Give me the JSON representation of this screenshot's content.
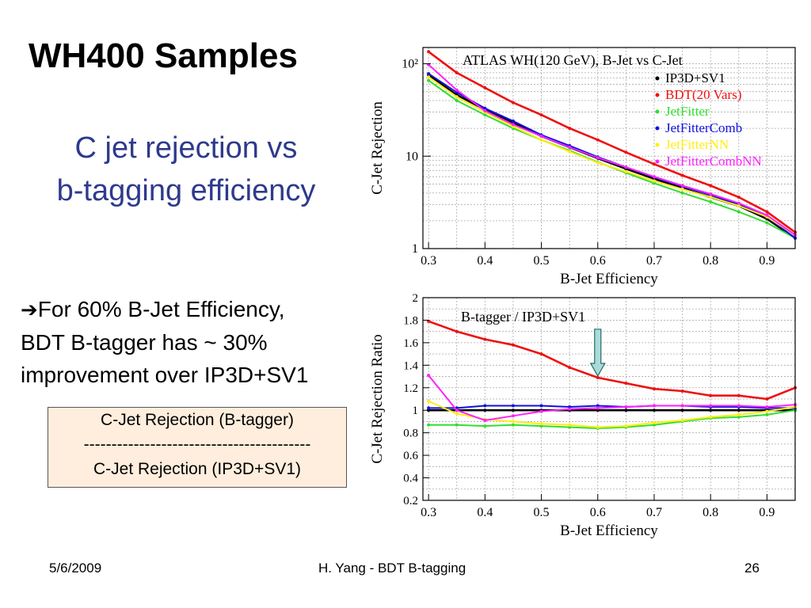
{
  "slide": {
    "title": "WH400 Samples",
    "subtitle_line1": "C jet rejection vs",
    "subtitle_line2": "b-tagging efficiency",
    "bullet_arrow": "➔",
    "bullet_line1": "For 60% B-Jet Efficiency,",
    "bullet_line2": "BDT B-tagger has ~ 30%",
    "bullet_line3": "improvement over IP3D+SV1",
    "box_top": "C-Jet Rejection (B-tagger)",
    "box_sep": "-----------------------------------------",
    "box_bottom": "C-Jet Rejection (IP3D+SV1)"
  },
  "footer": {
    "date": "5/6/2009",
    "center": "H. Yang - BDT B-tagging",
    "page": "26"
  },
  "colors": {
    "IP3D+SV1": "#000000",
    "BDT(20 Vars)": "#ee1111",
    "JetFitter": "#33dd33",
    "JetFitterComb": "#1111dd",
    "JetFitterNN": "#ffee11",
    "JetFitterCombNN": "#ff22ff",
    "ratio_arrow": "#a8dcd8"
  },
  "chart_data": [
    {
      "type": "line",
      "title": "ATLAS WH(120 GeV), B-Jet vs C-Jet",
      "xlabel": "B-Jet Efficiency",
      "ylabel": "C-Jet Rejection",
      "xlim": [
        0.29,
        0.95
      ],
      "ylim": [
        1,
        150
      ],
      "yscale": "log",
      "xticks": [
        "0.3",
        "0.4",
        "0.5",
        "0.6",
        "0.7",
        "0.8",
        "0.9"
      ],
      "yticks": [
        "1",
        "10",
        "10²"
      ],
      "grid": true,
      "legend_position": "top-right",
      "x": [
        0.3,
        0.35,
        0.4,
        0.45,
        0.5,
        0.55,
        0.6,
        0.65,
        0.7,
        0.75,
        0.8,
        0.85,
        0.9,
        0.95
      ],
      "series": [
        {
          "name": "IP3D+SV1",
          "values": [
            75,
            46,
            32,
            23,
            16.5,
            12.5,
            9.5,
            7.3,
            5.7,
            4.5,
            3.6,
            2.9,
            2.1,
            1.3
          ]
        },
        {
          "name": "BDT(20 Vars)",
          "values": [
            135,
            80,
            55,
            38,
            28,
            20,
            15,
            11,
            8.2,
            6.2,
            4.8,
            3.6,
            2.5,
            1.5
          ]
        },
        {
          "name": "JetFitter",
          "values": [
            66,
            40,
            28,
            20,
            15,
            11.5,
            8.6,
            6.6,
            5.1,
            4.0,
            3.2,
            2.5,
            1.9,
            1.3
          ]
        },
        {
          "name": "JetFitterComb",
          "values": [
            78,
            49,
            33,
            24,
            17,
            13,
            9.8,
            7.6,
            5.9,
            4.7,
            3.8,
            3.0,
            2.2,
            1.3
          ]
        },
        {
          "name": "JetFitterNN",
          "values": [
            72,
            44,
            30,
            21,
            15,
            11.2,
            8.5,
            6.8,
            5.4,
            4.4,
            3.6,
            2.9,
            2.2,
            1.4
          ]
        },
        {
          "name": "JetFitterCombNN",
          "values": [
            98,
            52,
            31,
            22,
            16.5,
            12.5,
            9.6,
            7.6,
            6.0,
            4.8,
            3.9,
            3.1,
            2.3,
            1.4
          ]
        }
      ]
    },
    {
      "type": "line",
      "title": "B-tagger / IP3D+SV1",
      "xlabel": "B-Jet Efficiency",
      "ylabel": "C-Jet Rejection Ratio",
      "xlim": [
        0.29,
        0.95
      ],
      "ylim": [
        0.2,
        2.0
      ],
      "xticks": [
        "0.3",
        "0.4",
        "0.5",
        "0.6",
        "0.7",
        "0.8",
        "0.9"
      ],
      "yticks": [
        "0.2",
        "0.4",
        "0.6",
        "0.8",
        "1",
        "1.2",
        "1.4",
        "1.6",
        "1.8",
        "2"
      ],
      "grid": true,
      "annotation_arrow_x": 0.6,
      "x": [
        0.3,
        0.35,
        0.4,
        0.45,
        0.5,
        0.55,
        0.6,
        0.65,
        0.7,
        0.75,
        0.8,
        0.85,
        0.9,
        0.95
      ],
      "series": [
        {
          "name": "IP3D+SV1",
          "values": [
            1.0,
            1.0,
            1.0,
            1.0,
            1.0,
            1.0,
            1.0,
            1.0,
            1.0,
            1.0,
            1.0,
            1.0,
            1.0,
            1.0
          ]
        },
        {
          "name": "BDT(20 Vars)",
          "values": [
            1.79,
            1.7,
            1.63,
            1.58,
            1.5,
            1.38,
            1.29,
            1.24,
            1.19,
            1.17,
            1.13,
            1.13,
            1.1,
            1.2
          ]
        },
        {
          "name": "JetFitter",
          "values": [
            0.87,
            0.87,
            0.86,
            0.87,
            0.86,
            0.85,
            0.84,
            0.85,
            0.87,
            0.9,
            0.93,
            0.94,
            0.96,
            1.0
          ]
        },
        {
          "name": "JetFitterComb",
          "values": [
            1.02,
            1.02,
            1.04,
            1.04,
            1.04,
            1.03,
            1.04,
            1.03,
            1.04,
            1.04,
            1.03,
            1.03,
            1.02,
            1.02
          ]
        },
        {
          "name": "JetFitterNN",
          "values": [
            1.08,
            0.97,
            0.92,
            0.9,
            0.88,
            0.87,
            0.85,
            0.86,
            0.89,
            0.91,
            0.94,
            0.96,
            0.99,
            1.03
          ]
        },
        {
          "name": "JetFitterCombNN",
          "values": [
            1.31,
            1.0,
            0.91,
            0.95,
            0.99,
            1.01,
            1.02,
            1.03,
            1.04,
            1.04,
            1.04,
            1.04,
            1.03,
            1.05
          ]
        }
      ]
    }
  ]
}
